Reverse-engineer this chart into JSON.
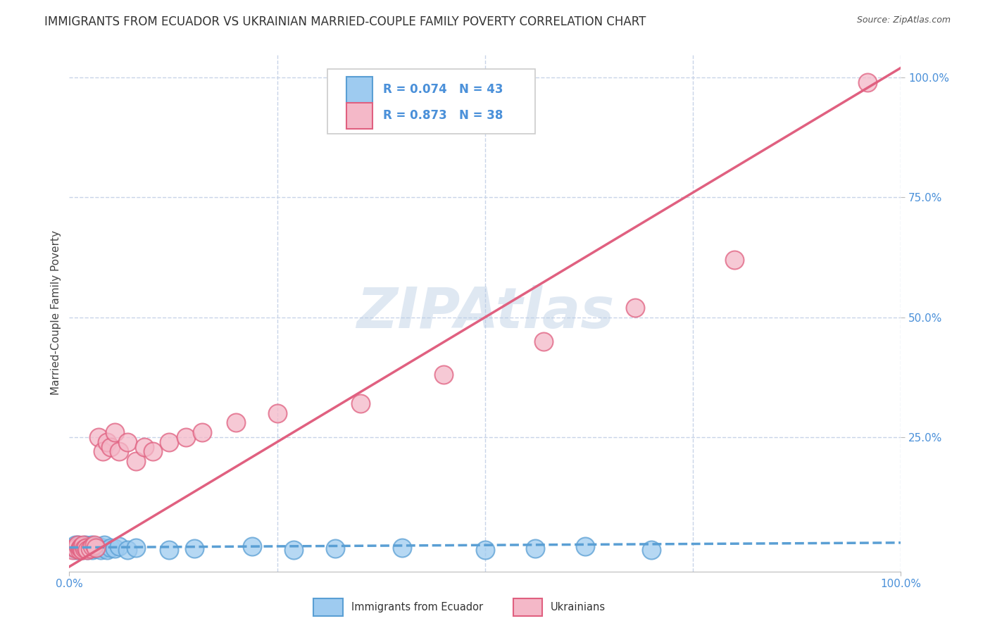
{
  "title": "IMMIGRANTS FROM ECUADOR VS UKRAINIAN MARRIED-COUPLE FAMILY POVERTY CORRELATION CHART",
  "source": "Source: ZipAtlas.com",
  "ylabel": "Married-Couple Family Poverty",
  "watermark": "ZIPAtlas",
  "ecuador_R": 0.074,
  "ecuador_N": 43,
  "ukrainian_R": 0.873,
  "ukrainian_N": 38,
  "ecuador_color": "#9ecbf0",
  "ukrainian_color": "#f4b8c8",
  "ecuador_edge_color": "#5a9fd4",
  "ukrainian_edge_color": "#e06080",
  "ecuador_line_color": "#5a9fd4",
  "ukrainian_line_color": "#e06080",
  "background_color": "#ffffff",
  "grid_color": "#c8d4e8",
  "ecuador_x": [
    0.004,
    0.006,
    0.007,
    0.008,
    0.009,
    0.01,
    0.011,
    0.012,
    0.013,
    0.014,
    0.015,
    0.016,
    0.017,
    0.018,
    0.019,
    0.02,
    0.022,
    0.023,
    0.025,
    0.027,
    0.028,
    0.03,
    0.032,
    0.035,
    0.038,
    0.04,
    0.042,
    0.045,
    0.05,
    0.055,
    0.06,
    0.07,
    0.08,
    0.12,
    0.15,
    0.22,
    0.27,
    0.32,
    0.4,
    0.5,
    0.56,
    0.62,
    0.7
  ],
  "ecuador_y": [
    0.02,
    0.018,
    0.025,
    0.015,
    0.022,
    0.018,
    0.025,
    0.015,
    0.02,
    0.018,
    0.022,
    0.015,
    0.02,
    0.018,
    0.025,
    0.02,
    0.015,
    0.022,
    0.018,
    0.025,
    0.015,
    0.02,
    0.018,
    0.022,
    0.015,
    0.02,
    0.025,
    0.015,
    0.02,
    0.018,
    0.022,
    0.015,
    0.02,
    0.015,
    0.018,
    0.022,
    0.015,
    0.018,
    0.02,
    0.015,
    0.018,
    0.022,
    0.015
  ],
  "ukrainian_x": [
    0.004,
    0.006,
    0.008,
    0.01,
    0.012,
    0.013,
    0.014,
    0.015,
    0.016,
    0.017,
    0.018,
    0.02,
    0.022,
    0.025,
    0.028,
    0.03,
    0.032,
    0.035,
    0.04,
    0.045,
    0.05,
    0.055,
    0.06,
    0.07,
    0.08,
    0.09,
    0.1,
    0.12,
    0.14,
    0.16,
    0.2,
    0.25,
    0.35,
    0.45,
    0.57,
    0.68,
    0.8,
    0.96
  ],
  "ukrainian_y": [
    0.015,
    0.02,
    0.018,
    0.025,
    0.015,
    0.02,
    0.018,
    0.022,
    0.015,
    0.025,
    0.018,
    0.02,
    0.015,
    0.018,
    0.022,
    0.025,
    0.02,
    0.25,
    0.22,
    0.24,
    0.23,
    0.26,
    0.22,
    0.24,
    0.2,
    0.23,
    0.22,
    0.24,
    0.25,
    0.26,
    0.28,
    0.3,
    0.32,
    0.38,
    0.45,
    0.52,
    0.62,
    0.99
  ],
  "uk_line_x0": 0.0,
  "uk_line_y0": -0.02,
  "uk_line_x1": 1.0,
  "uk_line_y1": 1.02,
  "ec_line_x0": 0.0,
  "ec_line_y0": 0.02,
  "ec_line_x1": 1.0,
  "ec_line_y1": 0.03,
  "ylim": [
    -0.03,
    1.05
  ],
  "xlim": [
    0.0,
    1.0
  ],
  "title_fontsize": 12,
  "axis_fontsize": 11,
  "legend_fontsize": 12
}
